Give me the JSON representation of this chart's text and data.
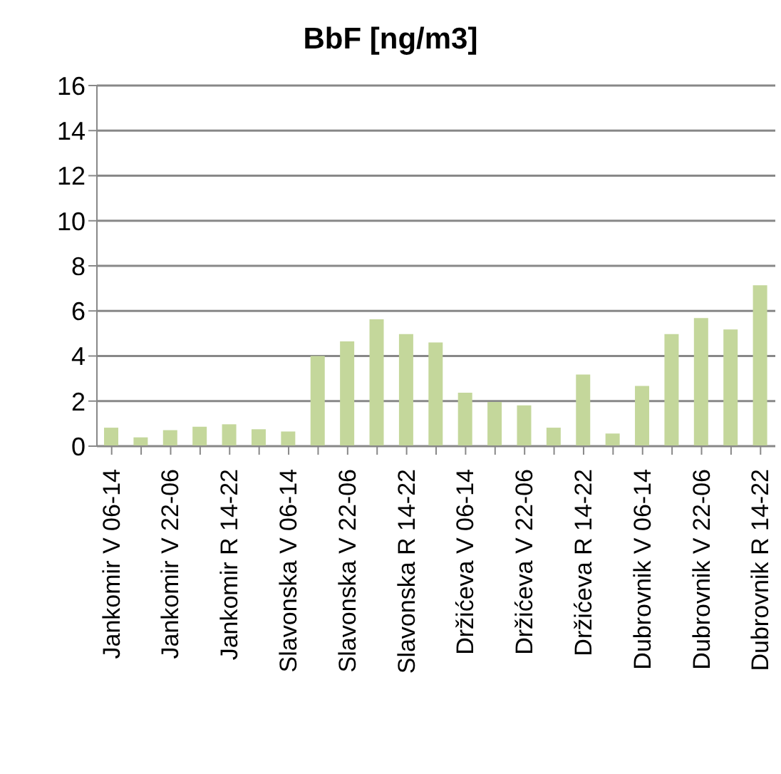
{
  "chart_data": {
    "type": "bar",
    "title": "BbF [ng/m3]",
    "categories": [
      "Jankomir V 06-14",
      null,
      "Jankomir V 22-06",
      null,
      "Jankomir R 14-22",
      null,
      "Slavonska V 06-14",
      null,
      "Slavonska V 22-06",
      null,
      "Slavonska R 14-22",
      null,
      "Držićeva V 06-14",
      null,
      "Držićeva V 22-06",
      null,
      "Držićeva R 14-22",
      null,
      "Dubrovnik V 06-14",
      null,
      "Dubrovnik V 22-06",
      null,
      "Dubrovnik R 14-22"
    ],
    "values": [
      0.82,
      0.39,
      0.71,
      0.86,
      0.97,
      0.75,
      0.65,
      4.0,
      4.65,
      5.63,
      4.97,
      4.6,
      2.37,
      1.96,
      1.81,
      0.82,
      3.18,
      0.56,
      2.67,
      4.97,
      5.68,
      5.18,
      7.14
    ],
    "color": "#c4d79b",
    "ylim": [
      0,
      16
    ],
    "yticks": [
      0,
      2,
      4,
      6,
      8,
      10,
      12,
      14,
      16
    ],
    "grid": "y",
    "legend": false
  }
}
